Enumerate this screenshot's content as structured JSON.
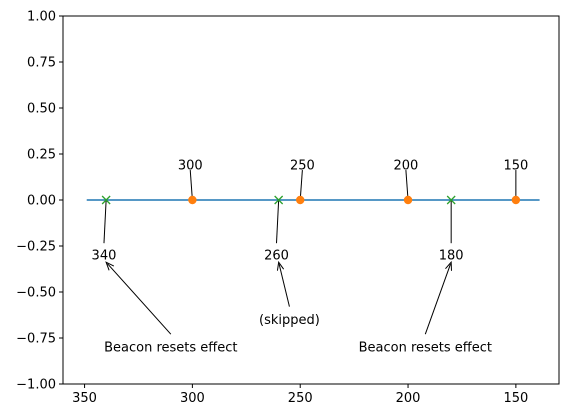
{
  "chart_data": {
    "type": "line",
    "title": "",
    "xlabel": "",
    "ylabel": "",
    "xlim": [
      360,
      130
    ],
    "ylim": [
      -1.0,
      1.0
    ],
    "x_inverted": true,
    "grid": false,
    "xticks": [
      350,
      300,
      250,
      200,
      150
    ],
    "xtick_labels": [
      "350",
      "300",
      "250",
      "200",
      "150"
    ],
    "yticks": [
      -1.0,
      -0.75,
      -0.5,
      -0.25,
      0.0,
      0.25,
      0.5,
      0.75,
      1.0
    ],
    "ytick_labels": [
      "−1.00",
      "−0.75",
      "−0.50",
      "−0.25",
      "0.00",
      "0.25",
      "0.50",
      "0.75",
      "1.00"
    ],
    "series": [
      {
        "kind": "line",
        "color": "#1f77b4",
        "x": [
          349,
          139
        ],
        "y": [
          0,
          0
        ]
      },
      {
        "kind": "scatter",
        "marker": "circle",
        "color": "#ff7f0e",
        "x": [
          300,
          250,
          200,
          150
        ],
        "y": [
          0,
          0,
          0,
          0
        ]
      },
      {
        "kind": "scatter",
        "marker": "x",
        "color": "#2ca02c",
        "x": [
          340,
          260,
          180
        ],
        "y": [
          0,
          0,
          0
        ]
      }
    ],
    "point_labels": [
      {
        "text": "300",
        "x": 300,
        "y": 0,
        "tx": 301,
        "ty": 0.19,
        "align": "middle"
      },
      {
        "text": "250",
        "x": 250,
        "y": 0,
        "tx": 249,
        "ty": 0.19,
        "align": "middle"
      },
      {
        "text": "200",
        "x": 200,
        "y": 0,
        "tx": 201,
        "ty": 0.19,
        "align": "middle"
      },
      {
        "text": "150",
        "x": 150,
        "y": 0,
        "tx": 150,
        "ty": 0.19,
        "align": "middle"
      },
      {
        "text": "340",
        "x": 340,
        "y": 0,
        "tx": 341,
        "ty": -0.3,
        "align": "middle"
      },
      {
        "text": "260",
        "x": 260,
        "y": 0,
        "tx": 261,
        "ty": -0.3,
        "align": "middle"
      },
      {
        "text": "180",
        "x": 180,
        "y": 0,
        "tx": 180,
        "ty": -0.3,
        "align": "middle"
      }
    ],
    "annotations": [
      {
        "text": "Beacon resets effect",
        "x": 340,
        "y": -0.3,
        "tx": 310,
        "ty": -0.8,
        "align": "middle"
      },
      {
        "text": "(skipped)",
        "x": 260,
        "y": -0.3,
        "tx": 255,
        "ty": -0.65,
        "align": "middle"
      },
      {
        "text": "Beacon resets effect",
        "x": 180,
        "y": -0.3,
        "tx": 192,
        "ty": -0.8,
        "align": "middle"
      }
    ]
  }
}
